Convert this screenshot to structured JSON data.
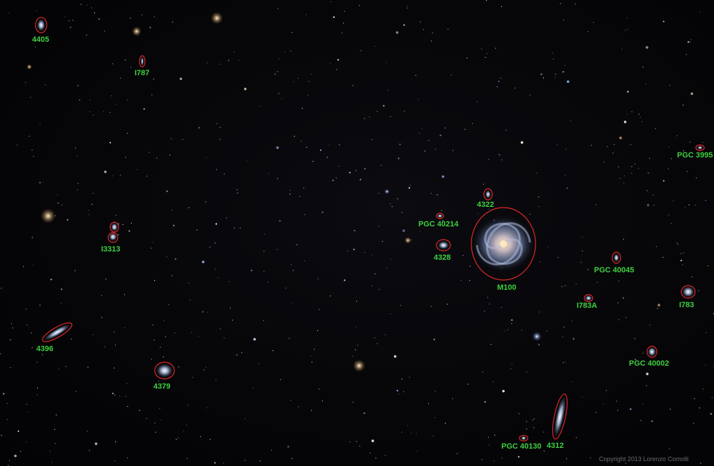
{
  "labels": {
    "n4405": "4405",
    "i787": "I787",
    "pgc3995": "PGC 3995",
    "n4322": "4322",
    "pgc40214": "PGC 40214",
    "i3313": "I3313",
    "n4328": "4328",
    "m100": "M100",
    "pgc40045": "PGC 40045",
    "i783a": "I783A",
    "i783": "I783",
    "n4396": "4396",
    "pgc40002": "PGC 40002",
    "n4379": "4379",
    "pgc40130": "PGC 40130",
    "n4312": "4312"
  },
  "copyright": "Copyright 2013 Lorenzo Comolli",
  "colors": {
    "label": "#3ed13e",
    "marker": "#e02828",
    "background": "#050507"
  }
}
